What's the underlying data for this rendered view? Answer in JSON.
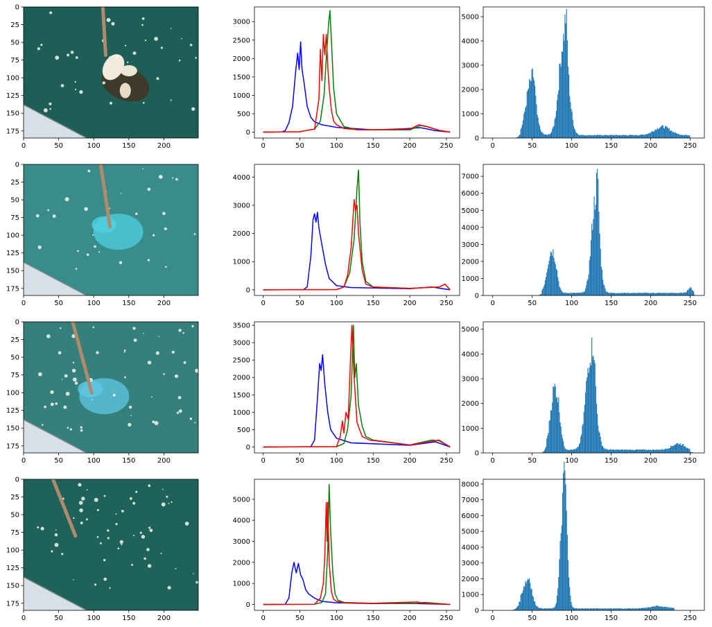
{
  "colors": {
    "blue": "#0000ff",
    "green": "#008000",
    "red": "#ff0000",
    "hist": "#1f77b4",
    "water": "#1d5e56",
    "boat": "#d6e0e6",
    "rope": "#b08a6a"
  },
  "chart_data": [
    {
      "type": "image",
      "row": 0,
      "xlim": [
        0,
        249
      ],
      "ylim": [
        185,
        0
      ],
      "xticks": [
        0,
        50,
        100,
        150,
        200
      ],
      "yticks": [
        0,
        25,
        50,
        75,
        100,
        125,
        150,
        175
      ],
      "tint": "#1d5e56",
      "highlight": "#f2eadd",
      "feature": "white-dish"
    },
    {
      "type": "line",
      "row": 0,
      "xlim": [
        -12,
        268
      ],
      "ylim": [
        -160,
        3400
      ],
      "xticks": [
        0,
        50,
        100,
        150,
        200,
        250
      ],
      "yticks": [
        0,
        500,
        1000,
        1500,
        2000,
        2500,
        3000
      ],
      "series": [
        {
          "color": "#0000ff",
          "x": [
            0,
            25,
            30,
            35,
            40,
            44,
            47,
            49,
            51,
            53,
            56,
            60,
            65,
            70,
            80,
            100,
            150,
            190,
            215,
            235,
            255
          ],
          "y": [
            0,
            5,
            40,
            250,
            700,
            1600,
            2150,
            1700,
            2450,
            1700,
            1300,
            700,
            400,
            280,
            200,
            130,
            60,
            90,
            120,
            40,
            0
          ]
        },
        {
          "color": "#008000",
          "x": [
            0,
            50,
            60,
            70,
            78,
            83,
            86,
            89,
            91,
            93,
            96,
            100,
            110,
            130,
            200,
            215,
            225,
            240,
            255
          ],
          "y": [
            0,
            10,
            50,
            80,
            300,
            1000,
            2000,
            2900,
            3300,
            2500,
            1200,
            500,
            150,
            60,
            60,
            180,
            140,
            50,
            0
          ]
        },
        {
          "color": "#ff0000",
          "x": [
            0,
            50,
            60,
            70,
            76,
            78,
            80,
            82,
            84,
            86,
            88,
            90,
            93,
            96,
            100,
            110,
            130,
            200,
            212,
            222,
            240,
            255
          ],
          "y": [
            0,
            10,
            50,
            80,
            900,
            2250,
            1400,
            2650,
            2100,
            2650,
            1800,
            1200,
            600,
            300,
            200,
            100,
            60,
            80,
            200,
            160,
            50,
            0
          ]
        }
      ]
    },
    {
      "type": "hist",
      "row": 0,
      "xlim": [
        -12,
        268
      ],
      "ylim": [
        0,
        5400
      ],
      "xticks": [
        0,
        50,
        100,
        150,
        200,
        250
      ],
      "yticks": [
        0,
        1000,
        2000,
        3000,
        4000,
        5000
      ],
      "peaks": [
        {
          "center": 48,
          "width": 6,
          "height": 2100
        },
        {
          "center": 52,
          "width": 2,
          "height": 700
        },
        {
          "center": 90,
          "width": 6,
          "height": 3900
        },
        {
          "center": 93,
          "width": 1.5,
          "height": 1400
        },
        {
          "center": 215,
          "width": 10,
          "height": 350
        }
      ],
      "floor": [
        {
          "from": 35,
          "to": 250,
          "value": 120
        }
      ]
    },
    {
      "type": "image",
      "row": 1,
      "xlim": [
        0,
        249
      ],
      "ylim": [
        185,
        0
      ],
      "xticks": [
        0,
        50,
        100,
        150,
        200
      ],
      "yticks": [
        0,
        25,
        50,
        75,
        100,
        125,
        150,
        175
      ],
      "tint": "#3a8c8a",
      "highlight": "#4fd0e0",
      "feature": "cyan-dish"
    },
    {
      "type": "line",
      "row": 1,
      "xlim": [
        -12,
        268
      ],
      "ylim": [
        -200,
        4450
      ],
      "xticks": [
        0,
        50,
        100,
        150,
        200,
        250
      ],
      "yticks": [
        0,
        1000,
        2000,
        3000,
        4000
      ],
      "series": [
        {
          "color": "#0000ff",
          "x": [
            0,
            55,
            60,
            65,
            68,
            70,
            72,
            74,
            76,
            80,
            85,
            90,
            100,
            120,
            200,
            230,
            255
          ],
          "y": [
            0,
            10,
            100,
            1200,
            2500,
            2700,
            2400,
            2750,
            2200,
            1600,
            900,
            400,
            150,
            80,
            40,
            100,
            0
          ]
        },
        {
          "color": "#008000",
          "x": [
            0,
            100,
            110,
            118,
            124,
            128,
            130,
            132,
            135,
            140,
            150,
            200,
            240,
            248,
            255
          ],
          "y": [
            0,
            10,
            100,
            600,
            1800,
            3600,
            4250,
            2400,
            1000,
            300,
            100,
            50,
            100,
            200,
            0
          ]
        },
        {
          "color": "#ff0000",
          "x": [
            0,
            100,
            110,
            115,
            120,
            124,
            126,
            128,
            130,
            135,
            140,
            150,
            200,
            240,
            248,
            255
          ],
          "y": [
            0,
            10,
            100,
            500,
            1500,
            3200,
            2800,
            3000,
            2000,
            700,
            200,
            100,
            50,
            100,
            200,
            0
          ]
        }
      ]
    },
    {
      "type": "hist",
      "row": 1,
      "xlim": [
        -12,
        268
      ],
      "ylim": [
        0,
        7700
      ],
      "xticks": [
        0,
        50,
        100,
        150,
        200,
        250
      ],
      "yticks": [
        0,
        1000,
        2000,
        3000,
        4000,
        5000,
        6000,
        7000
      ],
      "peaks": [
        {
          "center": 74,
          "width": 5,
          "height": 2400
        },
        {
          "center": 80,
          "width": 3,
          "height": 600
        },
        {
          "center": 130,
          "width": 5,
          "height": 5400
        },
        {
          "center": 133,
          "width": 1.5,
          "height": 2000
        },
        {
          "center": 250,
          "width": 3,
          "height": 300
        }
      ],
      "floor": [
        {
          "from": 62,
          "to": 255,
          "value": 150
        }
      ]
    },
    {
      "type": "image",
      "row": 2,
      "xlim": [
        0,
        249
      ],
      "ylim": [
        185,
        0
      ],
      "xticks": [
        0,
        50,
        100,
        150,
        200
      ],
      "yticks": [
        0,
        25,
        50,
        75,
        100,
        125,
        150,
        175
      ],
      "tint": "#36807c",
      "highlight": "#5ec8e4",
      "feature": "cyan-dish-sparkle"
    },
    {
      "type": "line",
      "row": 2,
      "xlim": [
        -12,
        268
      ],
      "ylim": [
        -170,
        3600
      ],
      "xticks": [
        0,
        50,
        100,
        150,
        200,
        250
      ],
      "yticks": [
        0,
        500,
        1000,
        1500,
        2000,
        2500,
        3000,
        3500
      ],
      "series": [
        {
          "color": "#0000ff",
          "x": [
            0,
            65,
            70,
            74,
            77,
            79,
            81,
            84,
            88,
            92,
            100,
            120,
            200,
            235,
            255
          ],
          "y": [
            0,
            10,
            200,
            1400,
            2400,
            2200,
            2650,
            1800,
            1000,
            500,
            250,
            120,
            50,
            150,
            0
          ]
        },
        {
          "color": "#008000",
          "x": [
            0,
            100,
            110,
            115,
            120,
            123,
            125,
            127,
            130,
            135,
            140,
            150,
            200,
            230,
            240,
            255
          ],
          "y": [
            0,
            10,
            100,
            500,
            1500,
            3500,
            2000,
            2400,
            1200,
            600,
            300,
            200,
            60,
            200,
            180,
            0
          ]
        },
        {
          "color": "#ff0000",
          "x": [
            0,
            100,
            105,
            108,
            110,
            113,
            116,
            119,
            121,
            124,
            128,
            135,
            145,
            200,
            240,
            255
          ],
          "y": [
            0,
            10,
            300,
            750,
            400,
            1000,
            800,
            2500,
            3500,
            2000,
            700,
            300,
            200,
            60,
            200,
            0
          ]
        }
      ]
    },
    {
      "type": "hist",
      "row": 2,
      "xlim": [
        -12,
        268
      ],
      "ylim": [
        0,
        5300
      ],
      "xticks": [
        0,
        50,
        100,
        150,
        200,
        250
      ],
      "yticks": [
        0,
        1000,
        2000,
        3000,
        4000,
        5000
      ],
      "peaks": [
        {
          "center": 78,
          "width": 5,
          "height": 2400
        },
        {
          "center": 84,
          "width": 3,
          "height": 600
        },
        {
          "center": 124,
          "width": 6,
          "height": 3900
        },
        {
          "center": 128,
          "width": 1.5,
          "height": 1100
        },
        {
          "center": 235,
          "width": 8,
          "height": 250
        }
      ],
      "floor": [
        {
          "from": 68,
          "to": 250,
          "value": 130
        }
      ]
    },
    {
      "type": "image",
      "row": 3,
      "xlim": [
        0,
        249
      ],
      "ylim": [
        185,
        0
      ],
      "xticks": [
        0,
        50,
        100,
        150,
        200
      ],
      "yticks": [
        0,
        25,
        50,
        75,
        100,
        125,
        150,
        175
      ],
      "tint": "#1f625a",
      "highlight": "#dfe7d9",
      "feature": "sparkles"
    },
    {
      "type": "line",
      "row": 3,
      "xlim": [
        -12,
        268
      ],
      "ylim": [
        -280,
        5950
      ],
      "xticks": [
        0,
        50,
        100,
        150,
        200,
        250
      ],
      "yticks": [
        0,
        1000,
        2000,
        3000,
        4000,
        5000
      ],
      "series": [
        {
          "color": "#0000ff",
          "x": [
            0,
            30,
            35,
            39,
            42,
            45,
            48,
            51,
            54,
            58,
            62,
            70,
            80,
            100,
            150,
            200,
            255
          ],
          "y": [
            0,
            10,
            300,
            1500,
            2000,
            1500,
            1950,
            1400,
            1200,
            700,
            500,
            300,
            150,
            80,
            40,
            50,
            0
          ]
        },
        {
          "color": "#008000",
          "x": [
            0,
            70,
            80,
            85,
            88,
            90,
            92,
            95,
            98,
            102,
            110,
            150,
            210,
            220,
            255
          ],
          "y": [
            0,
            10,
            100,
            500,
            2500,
            5700,
            3500,
            1500,
            500,
            200,
            100,
            50,
            60,
            100,
            0
          ]
        },
        {
          "color": "#ff0000",
          "x": [
            0,
            70,
            78,
            82,
            84,
            86,
            87,
            88,
            90,
            93,
            96,
            100,
            110,
            150,
            210,
            220,
            255
          ],
          "y": [
            0,
            10,
            300,
            1000,
            2300,
            4850,
            3000,
            4850,
            2000,
            600,
            250,
            150,
            80,
            60,
            120,
            60,
            0
          ]
        }
      ]
    },
    {
      "type": "hist",
      "row": 3,
      "xlim": [
        -12,
        268
      ],
      "ylim": [
        0,
        8300
      ],
      "xticks": [
        0,
        50,
        100,
        150,
        200,
        250
      ],
      "yticks": [
        0,
        1000,
        2000,
        3000,
        4000,
        5000,
        6000,
        7000,
        8000
      ],
      "peaks": [
        {
          "center": 43,
          "width": 6,
          "height": 1700
        },
        {
          "center": 47,
          "width": 2,
          "height": 500
        },
        {
          "center": 90,
          "width": 4,
          "height": 7200
        },
        {
          "center": 92,
          "width": 1.5,
          "height": 2000
        },
        {
          "center": 210,
          "width": 10,
          "height": 150
        }
      ],
      "floor": [
        {
          "from": 35,
          "to": 230,
          "value": 120
        }
      ]
    }
  ]
}
